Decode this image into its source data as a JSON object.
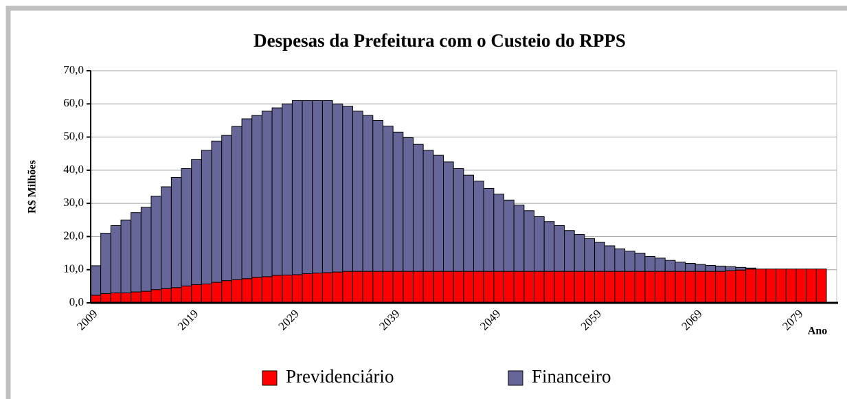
{
  "chart_data": {
    "type": "stacked_bar",
    "title": "Despesas da Prefeitura com o Custeio do RPPS",
    "y_label": "R$ Milhões",
    "x_label": "Ano",
    "categories": [
      "2009",
      null,
      null,
      null,
      null,
      null,
      null,
      null,
      null,
      null,
      "2019",
      null,
      null,
      null,
      null,
      null,
      null,
      null,
      null,
      null,
      "2029",
      null,
      null,
      null,
      null,
      null,
      null,
      null,
      null,
      null,
      "2039",
      null,
      null,
      null,
      null,
      null,
      null,
      null,
      null,
      null,
      "2049",
      null,
      null,
      null,
      null,
      null,
      null,
      null,
      null,
      null,
      "2059",
      null,
      null,
      null,
      null,
      null,
      null,
      null,
      null,
      null,
      "2069",
      null,
      null,
      null,
      null,
      null,
      null,
      null,
      null,
      null,
      "2079",
      null,
      null
    ],
    "series": [
      {
        "name": "Previdenciário",
        "color": "#ff0000",
        "values": [
          2.3,
          2.8,
          3,
          3,
          3.3,
          3.5,
          4,
          4.3,
          4.6,
          5.1,
          5.5,
          5.7,
          6.2,
          6.7,
          7,
          7.3,
          7.7,
          7.9,
          8.3,
          8.4,
          8.5,
          8.8,
          9,
          9.1,
          9.3,
          9.5,
          9.5,
          9.5,
          9.5,
          9.5,
          9.5,
          9.5,
          9.5,
          9.5,
          9.5,
          9.5,
          9.5,
          9.5,
          9.5,
          9.5,
          9.5,
          9.5,
          9.5,
          9.5,
          9.5,
          9.5,
          9.5,
          9.5,
          9.5,
          9.5,
          9.5,
          9.5,
          9.5,
          9.5,
          9.5,
          9.5,
          9.5,
          9.5,
          9.5,
          9.5,
          9.5,
          9.5,
          9.5,
          9.7,
          9.9,
          10.2,
          10.2,
          10.2,
          10.2,
          10.2,
          10.2,
          10.2,
          10.2
        ]
      },
      {
        "name": "Financeiro",
        "color": "#666699",
        "values": [
          8.9,
          18.2,
          20.3,
          22,
          23.9,
          25.3,
          28.2,
          30.7,
          33.2,
          35.4,
          37.7,
          40.3,
          42.6,
          43.8,
          46.2,
          48.2,
          48.8,
          49.9,
          50.5,
          51.6,
          52.5,
          52.2,
          52,
          51.9,
          50.7,
          49.8,
          48.3,
          47,
          45.5,
          43.8,
          42,
          40.3,
          38.3,
          36.5,
          35,
          33,
          31,
          29,
          27.2,
          25,
          23.3,
          21.5,
          20,
          18.3,
          16.5,
          15,
          13.8,
          12.3,
          11.1,
          9.9,
          8.8,
          7.7,
          6.8,
          6.1,
          5.5,
          4.5,
          4,
          3.3,
          2.8,
          2.4,
          2.1,
          1.8,
          1.6,
          1.2,
          0.8,
          0.3,
          0,
          0,
          0,
          0,
          0,
          0,
          0
        ]
      }
    ],
    "ylim": [
      0,
      70
    ],
    "yticks": [
      {
        "value": 0,
        "label": "0,0"
      },
      {
        "value": 10,
        "label": "10,0"
      },
      {
        "value": 20,
        "label": "20,0"
      },
      {
        "value": 30,
        "label": "30,0"
      },
      {
        "value": 40,
        "label": "40,0"
      },
      {
        "value": 50,
        "label": "50,0"
      },
      {
        "value": 60,
        "label": "60,0"
      },
      {
        "value": 70,
        "label": "70,0"
      }
    ],
    "grid": true,
    "legend": "bottom"
  }
}
